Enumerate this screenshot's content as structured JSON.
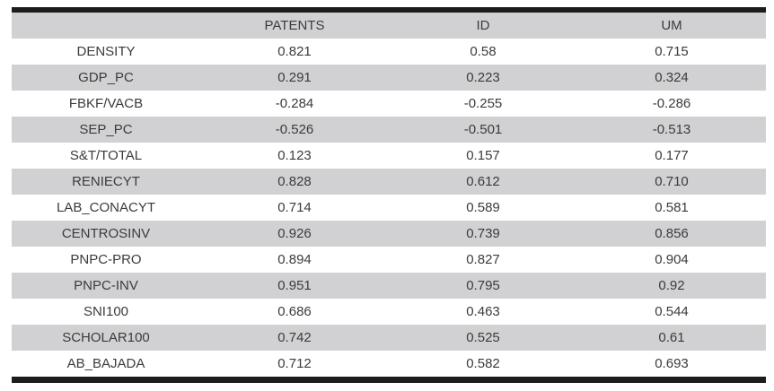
{
  "chart_data": {
    "type": "table",
    "title": "",
    "columns": [
      "",
      "PATENTS",
      "ID",
      "UM"
    ],
    "rows": [
      [
        "DENSITY",
        "0.821",
        "0.58",
        "0.715"
      ],
      [
        "GDP_PC",
        "0.291",
        "0.223",
        "0.324"
      ],
      [
        "FBKF/VACB",
        "-0.284",
        "-0.255",
        "-0.286"
      ],
      [
        "SEP_PC",
        "-0.526",
        "-0.501",
        "-0.513"
      ],
      [
        "S&T/TOTAL",
        "0.123",
        "0.157",
        "0.177"
      ],
      [
        "RENIECYT",
        "0.828",
        "0.612",
        "0.710"
      ],
      [
        "LAB_CONACYT",
        "0.714",
        "0.589",
        "0.581"
      ],
      [
        "CENTROSINV",
        "0.926",
        "0.739",
        "0.856"
      ],
      [
        "PNPC-PRO",
        "0.894",
        "0.827",
        "0.904"
      ],
      [
        "PNPC-INV",
        "0.951",
        "0.795",
        "0.92"
      ],
      [
        "SNI100",
        "0.686",
        "0.463",
        "0.544"
      ],
      [
        "SCHOLAR100",
        "0.742",
        "0.525",
        "0.61"
      ],
      [
        "AB_BAJADA",
        "0.712",
        "0.582",
        "0.693"
      ]
    ],
    "layout": {
      "banding": "alternating rows shaded starting with header",
      "grid": "off",
      "border_top": "thick black",
      "border_bottom": "thick black"
    },
    "colors": {
      "band_fill": "#d1d1d3",
      "text": "#3b3b3b",
      "rule": "#1c1c1c",
      "background": "#ffffff"
    }
  }
}
